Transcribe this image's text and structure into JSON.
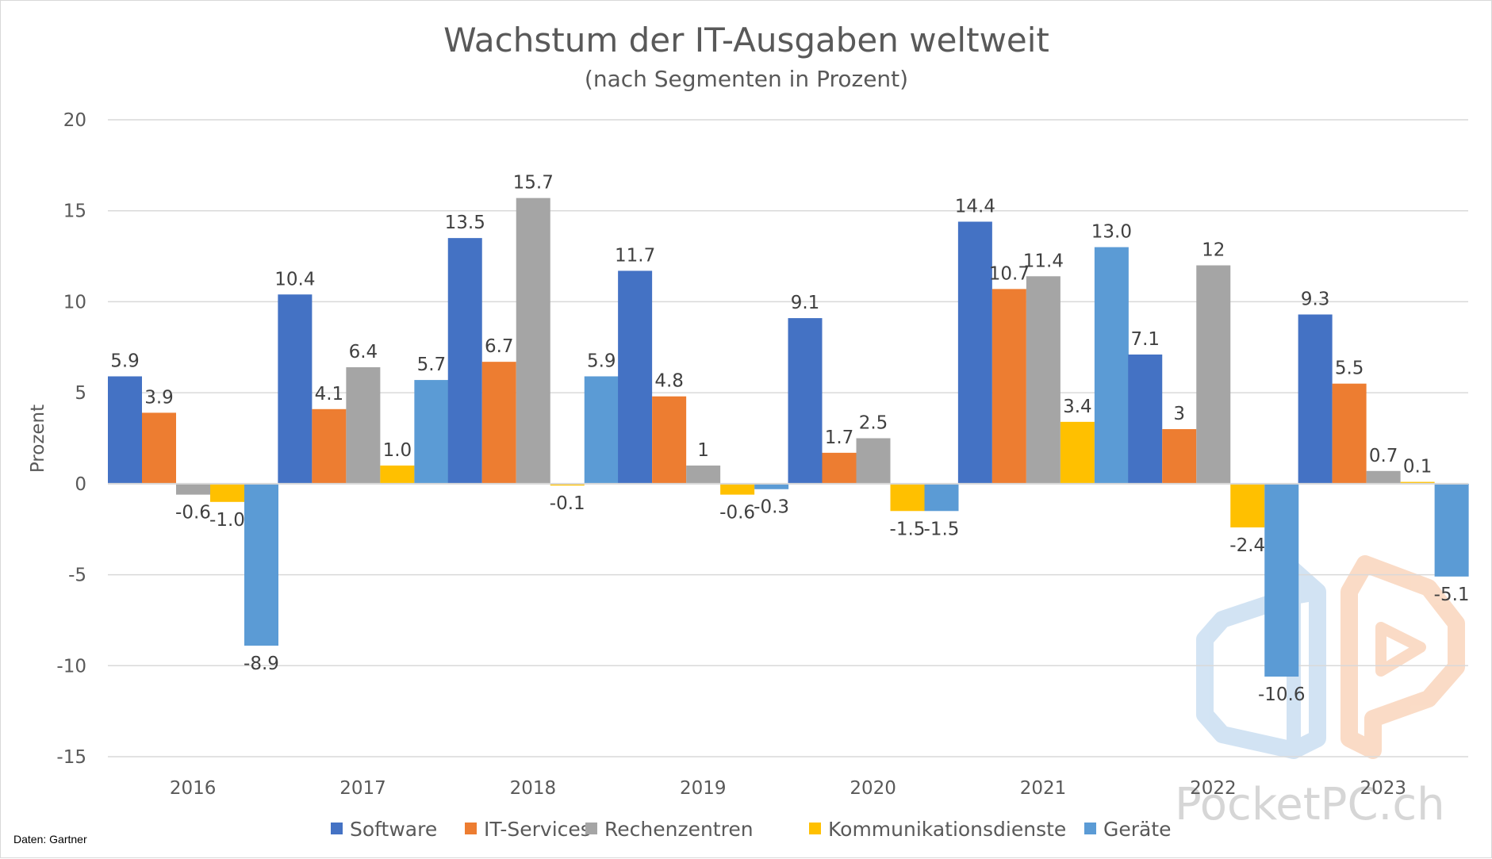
{
  "chart_data": {
    "type": "bar",
    "title": "Wachstum der IT-Ausgaben weltweit",
    "subtitle": "(nach Segmenten in Prozent)",
    "ylabel": "Prozent",
    "xlabel": "",
    "ylim": [
      -15,
      20
    ],
    "yticks": [
      -15,
      -10,
      -5,
      0,
      5,
      10,
      15,
      20
    ],
    "ytick_labels": [
      "-15",
      "-10",
      "-5",
      "0",
      "5",
      "10",
      "15",
      "20"
    ],
    "grid": true,
    "legend_position": "bottom",
    "categories": [
      "2016",
      "2017",
      "2018",
      "2019",
      "2020",
      "2021",
      "2022",
      "2023"
    ],
    "series": [
      {
        "name": "Software",
        "color": "#4472c4",
        "values": [
          5.9,
          10.4,
          13.5,
          11.7,
          9.1,
          14.4,
          7.1,
          9.3
        ],
        "labels": [
          "5.9",
          "10.4",
          "13.5",
          "11.7",
          "9.1",
          "14.4",
          "7.1",
          "9.3"
        ]
      },
      {
        "name": "IT-Services",
        "color": "#ed7d31",
        "values": [
          3.9,
          4.1,
          6.7,
          4.8,
          1.7,
          10.7,
          3.0,
          5.5
        ],
        "labels": [
          "3.9",
          "4.1",
          "6.7",
          "4.8",
          "1.7",
          "10.7",
          "3",
          "5.5"
        ]
      },
      {
        "name": "Rechenzentren",
        "color": "#a5a5a5",
        "values": [
          -0.6,
          6.4,
          15.7,
          1.0,
          2.5,
          11.4,
          12.0,
          0.7
        ],
        "labels": [
          "-0.6",
          "6.4",
          "15.7",
          "1",
          "2.5",
          "11.4",
          "12",
          "0.7"
        ]
      },
      {
        "name": "Kommunikationsdienste",
        "color": "#ffc000",
        "values": [
          -1.0,
          1.0,
          -0.1,
          -0.6,
          -1.5,
          3.4,
          -2.4,
          0.1
        ],
        "labels": [
          "-1.0",
          "1.0",
          "-0.1",
          "-0.6",
          "-1.5",
          "3.4",
          "-2.4",
          "0.1"
        ]
      },
      {
        "name": "Geräte",
        "color": "#5b9bd5",
        "values": [
          -8.9,
          5.7,
          5.9,
          -0.3,
          -1.5,
          13.0,
          -10.6,
          -5.1
        ],
        "labels": [
          "-8.9",
          "5.7",
          "5.9",
          "-0.3",
          "-1.5",
          "13.0",
          "-10.6",
          "-5.1"
        ]
      }
    ],
    "source_note": "Daten: Gartner"
  },
  "watermark": {
    "text": "PocketPC.ch",
    "logo_colors": [
      "#9dc3e6",
      "#f4b183"
    ]
  }
}
